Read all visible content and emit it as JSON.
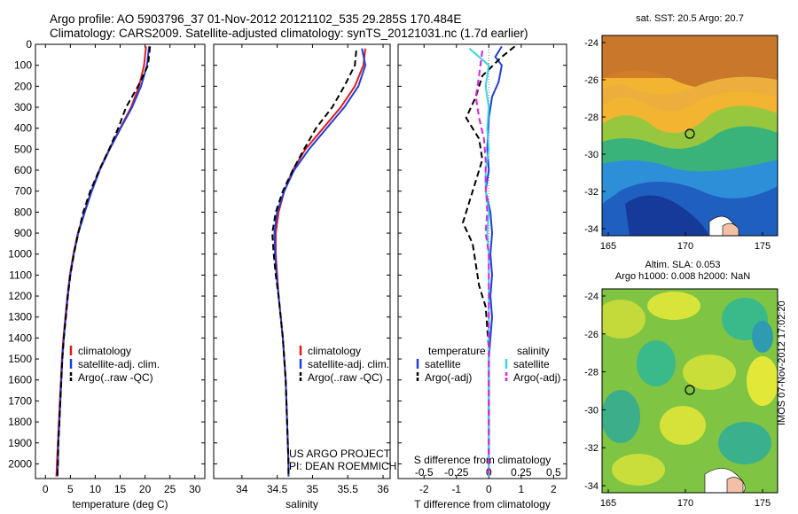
{
  "header": {
    "title_line1": "Argo profile: AO 5903796_37 01-Nov-2012 20121102_535 29.285S 170.484E",
    "title_line2": "Climatology: CARS2009. Satellite-adjusted climatology: synTS_20121031.nc (1.7d earlier)"
  },
  "credit": {
    "line1": "US ARGO PROJECT",
    "line2": "PI: DEAN ROEMMICH"
  },
  "stamp": "IMOS 07-Nov-2012 17:02:20",
  "maps": {
    "sst_title": "sat. SST: 20.5 Argo: 20.7",
    "sla_title1": "Altim. SLA: 0.053",
    "sla_title2": "Argo h1000: 0.008 h2000: NaN",
    "lat_ticks": [
      "-24",
      "-26",
      "-28",
      "-30",
      "-32",
      "-34"
    ],
    "lon_ticks": [
      "165",
      "170",
      "175"
    ],
    "colors": {
      "warm": "#d9892a",
      "mid": "#7fc443",
      "cool": "#2a7fd6"
    }
  },
  "chart_data": [
    {
      "type": "line",
      "xlabel": "temperature (deg C)",
      "xlim": [
        -2,
        32
      ],
      "ylim": [
        0,
        2070
      ],
      "xticks": [
        "0",
        "5",
        "10",
        "15",
        "20",
        "25",
        "30"
      ],
      "yticks": [
        "0",
        "100",
        "200",
        "300",
        "400",
        "500",
        "600",
        "700",
        "800",
        "900",
        "1000",
        "1100",
        "1200",
        "1300",
        "1400",
        "1500",
        "1600",
        "1700",
        "1800",
        "1900",
        "2000"
      ],
      "legend": [
        "climatology",
        "satellite-adj. clim.",
        "Argo(..raw -QC)"
      ],
      "series": [
        {
          "name": "climatology",
          "color": "#e31a1c",
          "dash": "",
          "points": [
            [
              20.2,
              10
            ],
            [
              19.8,
              100
            ],
            [
              18.8,
              200
            ],
            [
              17.2,
              300
            ],
            [
              15.0,
              400
            ],
            [
              12.8,
              500
            ],
            [
              10.8,
              600
            ],
            [
              9.2,
              700
            ],
            [
              7.8,
              800
            ],
            [
              6.5,
              900
            ],
            [
              5.6,
              1000
            ],
            [
              4.9,
              1100
            ],
            [
              4.4,
              1200
            ],
            [
              4.0,
              1300
            ],
            [
              3.6,
              1400
            ],
            [
              3.3,
              1500
            ],
            [
              3.1,
              1600
            ],
            [
              2.9,
              1700
            ],
            [
              2.7,
              1800
            ],
            [
              2.5,
              1900
            ],
            [
              2.3,
              2000
            ],
            [
              2.2,
              2060
            ]
          ]
        },
        {
          "name": "satellite-adj. clim.",
          "color": "#1f3fdc",
          "dash": "",
          "points": [
            [
              20.8,
              10
            ],
            [
              20.4,
              100
            ],
            [
              19.2,
              200
            ],
            [
              17.4,
              300
            ],
            [
              15.1,
              400
            ],
            [
              12.9,
              500
            ],
            [
              10.9,
              600
            ],
            [
              9.3,
              700
            ],
            [
              7.9,
              800
            ],
            [
              6.6,
              900
            ],
            [
              5.7,
              1000
            ],
            [
              5.0,
              1100
            ],
            [
              4.5,
              1200
            ],
            [
              4.1,
              1300
            ],
            [
              3.7,
              1400
            ],
            [
              3.4,
              1500
            ],
            [
              3.2,
              1600
            ],
            [
              3.0,
              1700
            ],
            [
              2.8,
              1800
            ],
            [
              2.6,
              1900
            ],
            [
              2.5,
              2000
            ],
            [
              2.4,
              2060
            ]
          ]
        },
        {
          "name": "Argo(..raw -QC)",
          "color": "#000000",
          "dash": "7,4",
          "points": [
            [
              21.0,
              10
            ],
            [
              20.6,
              100
            ],
            [
              18.6,
              200
            ],
            [
              16.2,
              300
            ],
            [
              14.6,
              400
            ],
            [
              12.8,
              500
            ],
            [
              10.8,
              600
            ],
            [
              9.0,
              700
            ],
            [
              7.6,
              800
            ],
            [
              6.6,
              900
            ],
            [
              5.7,
              1000
            ],
            [
              5.0,
              1100
            ],
            [
              4.5,
              1200
            ],
            [
              4.1,
              1300
            ],
            [
              3.7,
              1400
            ],
            [
              3.4,
              1500
            ],
            [
              3.2,
              1600
            ],
            [
              3.0,
              1700
            ],
            [
              2.8,
              1800
            ],
            [
              2.6,
              1900
            ],
            [
              2.5,
              2000
            ],
            [
              2.4,
              2060
            ]
          ]
        }
      ]
    },
    {
      "type": "line",
      "xlabel": "salinity",
      "xlim": [
        33.6,
        36.1
      ],
      "ylim": [
        0,
        2070
      ],
      "xticks": [
        "34",
        "34.5",
        "35",
        "35.5",
        "36"
      ],
      "legend": [
        "climatology",
        "satellite-adj. clim.",
        "Argo(..raw -QC)"
      ],
      "series": [
        {
          "name": "climatology",
          "color": "#e31a1c",
          "dash": "",
          "points": [
            [
              35.75,
              20
            ],
            [
              35.72,
              100
            ],
            [
              35.6,
              200
            ],
            [
              35.4,
              300
            ],
            [
              35.15,
              400
            ],
            [
              34.9,
              500
            ],
            [
              34.72,
              600
            ],
            [
              34.6,
              700
            ],
            [
              34.52,
              800
            ],
            [
              34.48,
              900
            ],
            [
              34.48,
              1000
            ],
            [
              34.5,
              1100
            ],
            [
              34.52,
              1200
            ],
            [
              34.55,
              1300
            ],
            [
              34.58,
              1400
            ],
            [
              34.6,
              1500
            ],
            [
              34.62,
              1600
            ],
            [
              34.63,
              1700
            ],
            [
              34.64,
              1800
            ],
            [
              34.65,
              1900
            ],
            [
              34.66,
              2000
            ],
            [
              34.66,
              2060
            ]
          ]
        },
        {
          "name": "satellite-adj. clim.",
          "color": "#1f3fdc",
          "dash": "",
          "points": [
            [
              35.7,
              20
            ],
            [
              35.75,
              100
            ],
            [
              35.65,
              200
            ],
            [
              35.45,
              300
            ],
            [
              35.2,
              400
            ],
            [
              34.95,
              500
            ],
            [
              34.74,
              600
            ],
            [
              34.6,
              700
            ],
            [
              34.5,
              800
            ],
            [
              34.46,
              900
            ],
            [
              34.47,
              1000
            ],
            [
              34.49,
              1100
            ],
            [
              34.52,
              1200
            ],
            [
              34.55,
              1300
            ],
            [
              34.58,
              1400
            ],
            [
              34.6,
              1500
            ],
            [
              34.62,
              1600
            ],
            [
              34.63,
              1700
            ],
            [
              34.64,
              1800
            ],
            [
              34.65,
              1900
            ],
            [
              34.66,
              2000
            ],
            [
              34.66,
              2060
            ]
          ]
        },
        {
          "name": "Argo(..raw -QC)",
          "color": "#000000",
          "dash": "7,4",
          "points": [
            [
              35.62,
              30
            ],
            [
              35.6,
              100
            ],
            [
              35.45,
              200
            ],
            [
              35.28,
              300
            ],
            [
              35.05,
              400
            ],
            [
              34.88,
              500
            ],
            [
              34.72,
              600
            ],
            [
              34.58,
              700
            ],
            [
              34.48,
              800
            ],
            [
              34.43,
              900
            ],
            [
              34.45,
              1000
            ],
            [
              34.48,
              1100
            ],
            [
              34.52,
              1200
            ],
            [
              34.55,
              1300
            ],
            [
              34.58,
              1400
            ],
            [
              34.6,
              1500
            ],
            [
              34.62,
              1600
            ],
            [
              34.63,
              1700
            ],
            [
              34.64,
              1800
            ],
            [
              34.65,
              1900
            ],
            [
              34.66,
              2000
            ],
            [
              34.66,
              2060
            ]
          ]
        }
      ]
    },
    {
      "type": "line",
      "xlabel": "T difference from climatology",
      "xlabel_top": "S difference from climatology",
      "xlim": [
        -2.8,
        2.4
      ],
      "ylim": [
        0,
        2070
      ],
      "xticks": [
        "-2",
        "-1",
        "0",
        "1",
        "2"
      ],
      "xticks_top": [
        "-0.5",
        "-0.25",
        "0",
        "0.25",
        "0.5"
      ],
      "legend_headers": [
        "temperature",
        "salinity"
      ],
      "legend": [
        "satellite",
        "Argo(-adj)",
        "satellite",
        "Argo(-adj)"
      ],
      "series": [
        {
          "name": "satellite",
          "group": "temperature",
          "color": "#1f3fdc",
          "dash": "",
          "points": [
            [
              0.4,
              10
            ],
            [
              0.2,
              60
            ],
            [
              0.4,
              100
            ],
            [
              0.3,
              180
            ],
            [
              0.1,
              250
            ],
            [
              0.0,
              350
            ],
            [
              -0.05,
              500
            ],
            [
              0.0,
              600
            ],
            [
              -0.1,
              700
            ],
            [
              0.05,
              800
            ],
            [
              0.1,
              900
            ],
            [
              0.05,
              1000
            ],
            [
              0.1,
              1100
            ],
            [
              0.05,
              1200
            ],
            [
              0.1,
              1300
            ],
            [
              0.05,
              1400
            ],
            [
              0.0,
              1500
            ],
            [
              0.0,
              1700
            ],
            [
              0.0,
              1900
            ],
            [
              0.0,
              2060
            ]
          ]
        },
        {
          "name": "Argo(-adj)",
          "group": "temperature",
          "color": "#000000",
          "dash": "7,4",
          "points": [
            [
              0.8,
              10
            ],
            [
              0.4,
              60
            ],
            [
              -0.2,
              150
            ],
            [
              -0.4,
              250
            ],
            [
              -0.7,
              350
            ],
            [
              -0.3,
              450
            ],
            [
              -0.2,
              550
            ],
            [
              -0.4,
              650
            ],
            [
              -0.6,
              750
            ],
            [
              -0.8,
              850
            ],
            [
              -0.5,
              950
            ],
            [
              -0.4,
              1050
            ],
            [
              -0.3,
              1150
            ],
            [
              -0.1,
              1250
            ],
            [
              -0.05,
              1350
            ],
            [
              0.0,
              1450
            ],
            [
              0.0,
              1600
            ],
            [
              0.0,
              1800
            ],
            [
              0.0,
              2000
            ],
            [
              0.0,
              2060
            ]
          ]
        },
        {
          "name": "satellite",
          "group": "salinity",
          "color": "#36d7e0",
          "dash": "",
          "points": [
            [
              -0.6,
              20
            ],
            [
              0.0,
              100
            ],
            [
              -0.1,
              200
            ],
            [
              0.0,
              300
            ],
            [
              -0.05,
              400
            ],
            [
              0.0,
              500
            ],
            [
              -0.1,
              600
            ],
            [
              -0.1,
              700
            ],
            [
              0.0,
              800
            ],
            [
              -0.05,
              900
            ],
            [
              0.0,
              1000
            ],
            [
              0.0,
              1200
            ],
            [
              0.0,
              1400
            ],
            [
              0.0,
              1600
            ],
            [
              0.0,
              1800
            ],
            [
              0.0,
              2000
            ],
            [
              0.0,
              2060
            ]
          ]
        },
        {
          "name": "Argo(-adj)",
          "group": "salinity",
          "color": "#e020e0",
          "dash": "7,4",
          "points": [
            [
              -0.2,
              30
            ],
            [
              -0.3,
              150
            ],
            [
              -0.4,
              250
            ],
            [
              -0.3,
              350
            ],
            [
              -0.15,
              450
            ],
            [
              -0.1,
              550
            ],
            [
              -0.1,
              650
            ],
            [
              -0.05,
              800
            ],
            [
              -0.1,
              900
            ],
            [
              0.0,
              1000
            ],
            [
              0.0,
              1200
            ],
            [
              0.0,
              1400
            ],
            [
              0.0,
              1600
            ],
            [
              0.0,
              1800
            ],
            [
              0.0,
              2000
            ],
            [
              0.0,
              2060
            ]
          ]
        }
      ]
    }
  ]
}
